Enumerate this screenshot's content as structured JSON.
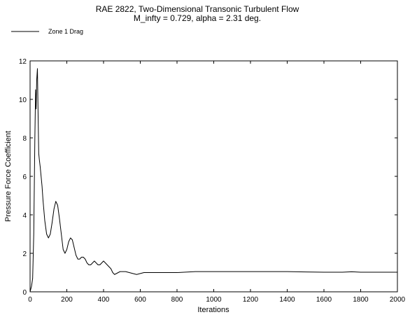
{
  "chart_data": {
    "type": "line",
    "title": "RAE 2822, Two-Dimensional Transonic Turbulent Flow",
    "subtitle": "M_infty = 0.729, alpha = 2.31 deg.",
    "xlabel": "Iterations",
    "ylabel": "Pressure  Force  Coefficient",
    "xlim": [
      0,
      2000
    ],
    "ylim": [
      0,
      12
    ],
    "xticks": [
      0,
      200,
      400,
      600,
      800,
      1000,
      1200,
      1400,
      1600,
      1800,
      2000
    ],
    "yticks": [
      0,
      2,
      4,
      6,
      8,
      10,
      12
    ],
    "grid": false,
    "legend_position": "top-left",
    "series": [
      {
        "name": "Zone   1 Drag",
        "color": "#000000",
        "x": [
          0,
          8,
          14,
          20,
          26,
          30,
          33,
          36,
          40,
          44,
          47,
          50,
          55,
          60,
          65,
          70,
          80,
          90,
          100,
          110,
          120,
          130,
          140,
          150,
          160,
          170,
          180,
          190,
          200,
          210,
          220,
          230,
          240,
          250,
          260,
          270,
          280,
          290,
          300,
          310,
          320,
          330,
          340,
          350,
          360,
          370,
          380,
          390,
          400,
          410,
          420,
          430,
          440,
          450,
          460,
          470,
          480,
          490,
          500,
          520,
          540,
          560,
          580,
          600,
          620,
          700,
          800,
          900,
          1000,
          1100,
          1200,
          1300,
          1400,
          1500,
          1600,
          1700,
          1750,
          1800,
          1900,
          2000
        ],
        "values": [
          0.0,
          0.3,
          0.7,
          3.0,
          8.0,
          10.5,
          9.5,
          11.0,
          11.6,
          9.0,
          7.2,
          6.9,
          6.5,
          6.0,
          5.5,
          4.8,
          3.7,
          3.0,
          2.8,
          3.0,
          3.6,
          4.3,
          4.7,
          4.5,
          3.8,
          3.0,
          2.2,
          2.0,
          2.2,
          2.6,
          2.8,
          2.7,
          2.3,
          1.9,
          1.7,
          1.7,
          1.8,
          1.8,
          1.7,
          1.5,
          1.4,
          1.4,
          1.5,
          1.6,
          1.5,
          1.4,
          1.4,
          1.5,
          1.6,
          1.5,
          1.4,
          1.3,
          1.2,
          1.0,
          0.9,
          0.95,
          1.0,
          1.05,
          1.05,
          1.05,
          1.0,
          0.95,
          0.9,
          0.95,
          1.0,
          1.0,
          1.0,
          1.05,
          1.05,
          1.05,
          1.05,
          1.05,
          1.05,
          1.03,
          1.02,
          1.02,
          1.04,
          1.02,
          1.02,
          1.02
        ]
      }
    ]
  }
}
